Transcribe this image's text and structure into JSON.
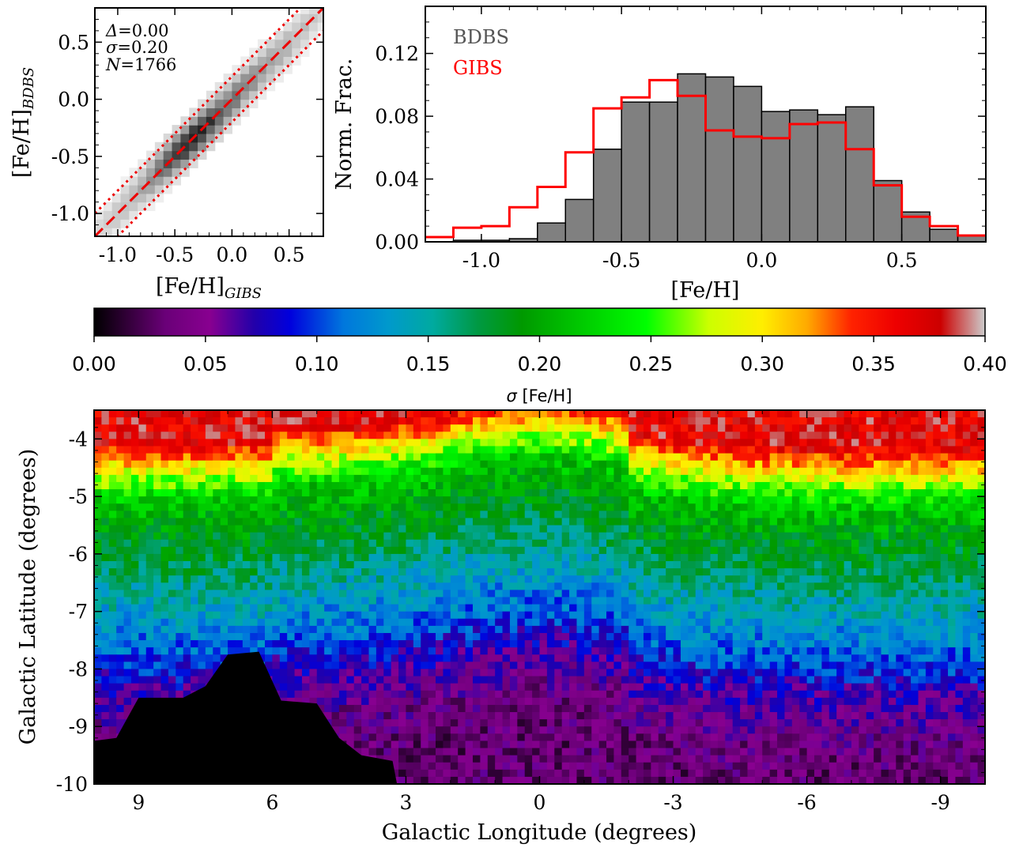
{
  "scatter_panel": {
    "ylabel_main": "[Fe/H]",
    "ylabel_sub": "BDBS",
    "xlabel_main": "[Fe/H]",
    "xlabel_sub": "GIBS",
    "stats": [
      {
        "symbol": "Δ",
        "value": "=0.00"
      },
      {
        "symbol": "σ",
        "value": "=0.20"
      },
      {
        "symbol": "N",
        "value": "=1766"
      }
    ]
  },
  "histogram_panel": {
    "ylabel": "Norm. Frac.",
    "xlabel": "[Fe/H]",
    "legend": [
      {
        "label": "BDBS",
        "color": "#555555"
      },
      {
        "label": "GIBS",
        "color": "#ff0000"
      }
    ]
  },
  "colorbar": {
    "label_symbol": "σ",
    "label_text": " [Fe/H]",
    "ticks": [
      "0.00",
      "0.05",
      "0.10",
      "0.15",
      "0.20",
      "0.25",
      "0.30",
      "0.35",
      "0.40"
    ]
  },
  "map_panel": {
    "xlabel": "Galactic Longitude (degrees)",
    "ylabel": "Galactic Latitude (degrees)"
  },
  "chart_data": [
    {
      "type": "heatmap",
      "panel": "scatter_panel",
      "x_range": [
        -1.2,
        0.8
      ],
      "y_range": [
        -1.2,
        0.8
      ],
      "xticks": [
        -1.0,
        -0.5,
        0.0,
        0.5
      ],
      "xtick_labels": [
        "-1.0",
        "-0.5",
        "0.0",
        "0.5"
      ],
      "yticks": [
        -1.0,
        -0.5,
        0.0,
        0.5
      ],
      "ytick_labels": [
        "-1.0",
        "-0.5",
        "0.0",
        "0.5"
      ],
      "density_peak": [
        -0.4,
        -0.4
      ],
      "one_to_one_line": {
        "slope": 1,
        "offset": 0.0,
        "color": "#ee0000",
        "style": "dashed"
      },
      "sigma_lines": {
        "offsets": [
          -0.2,
          0.2
        ],
        "color": "#ee0000",
        "style": "dotted"
      }
    },
    {
      "type": "bar",
      "panel": "histogram_panel",
      "x_range": [
        -1.2,
        0.8
      ],
      "y_range": [
        0,
        0.15
      ],
      "xticks": [
        -1.0,
        -0.5,
        0.0,
        0.5
      ],
      "xtick_labels": [
        "-1.0",
        "-0.5",
        "0.0",
        "0.5"
      ],
      "yticks": [
        0.0,
        0.04,
        0.08,
        0.12
      ],
      "ytick_labels": [
        "0.00",
        "0.04",
        "0.08",
        "0.12"
      ],
      "bin_edges": [
        -1.2,
        -1.1,
        -1.0,
        -0.9,
        -0.8,
        -0.7,
        -0.6,
        -0.5,
        -0.4,
        -0.3,
        -0.2,
        -0.1,
        0.0,
        0.1,
        0.2,
        0.3,
        0.4,
        0.5,
        0.6,
        0.7,
        0.8
      ],
      "series": [
        {
          "name": "BDBS",
          "style": "filled",
          "color": "#808080",
          "values": [
            0.0,
            0.001,
            0.001,
            0.002,
            0.012,
            0.027,
            0.059,
            0.089,
            0.089,
            0.107,
            0.105,
            0.099,
            0.083,
            0.084,
            0.081,
            0.086,
            0.039,
            0.019,
            0.008,
            0.004
          ]
        },
        {
          "name": "GIBS",
          "style": "step",
          "color": "#ff0000",
          "values": [
            0.003,
            0.009,
            0.01,
            0.022,
            0.035,
            0.057,
            0.085,
            0.092,
            0.103,
            0.093,
            0.071,
            0.067,
            0.066,
            0.075,
            0.076,
            0.059,
            0.036,
            0.016,
            0.01,
            0.004
          ]
        }
      ]
    },
    {
      "type": "heatmap",
      "panel": "map_panel",
      "value_label": "σ [Fe/H]",
      "value_range": [
        0.0,
        0.4
      ],
      "colormap": "nipy_spectral",
      "x_range": [
        10,
        -10
      ],
      "y_range": [
        -10,
        -3.5
      ],
      "xticks": [
        9,
        6,
        3,
        0,
        -3,
        -6,
        -9
      ],
      "xtick_labels": [
        "9",
        "6",
        "3",
        "0",
        "-3",
        "-6",
        "-9"
      ],
      "yticks": [
        -4,
        -5,
        -6,
        -7,
        -8,
        -9,
        -10
      ],
      "ytick_labels": [
        "-4",
        "-5",
        "-6",
        "-7",
        "-8",
        "-9",
        "-10"
      ],
      "no_data_boundary": [
        [
          10,
          -9.25
        ],
        [
          9.5,
          -9.2
        ],
        [
          9.0,
          -8.5
        ],
        [
          8.0,
          -8.5
        ],
        [
          7.5,
          -8.3
        ],
        [
          7.0,
          -7.75
        ],
        [
          6.3,
          -7.7
        ],
        [
          5.8,
          -8.55
        ],
        [
          5.0,
          -8.6
        ],
        [
          4.5,
          -9.2
        ],
        [
          4.0,
          -9.5
        ],
        [
          3.3,
          -9.6
        ],
        [
          3.2,
          -10
        ]
      ],
      "gradient_rows": [
        {
          "lat": -3.8,
          "sigma": 0.37
        },
        {
          "lat": -4.3,
          "sigma": 0.29
        },
        {
          "lat": -4.8,
          "sigma": 0.22
        },
        {
          "lat": -5.4,
          "sigma": 0.19
        },
        {
          "lat": -6.0,
          "sigma": 0.17
        },
        {
          "lat": -6.7,
          "sigma": 0.14
        },
        {
          "lat": -7.4,
          "sigma": 0.11
        },
        {
          "lat": -8.1,
          "sigma": 0.07
        },
        {
          "lat": -8.8,
          "sigma": 0.045
        },
        {
          "lat": -9.5,
          "sigma": 0.035
        }
      ]
    }
  ]
}
